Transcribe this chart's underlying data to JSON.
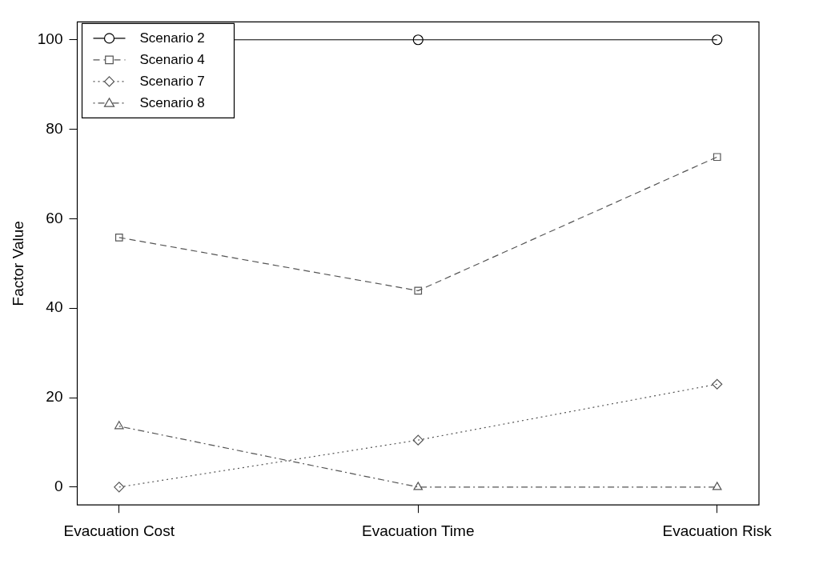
{
  "chart_data": {
    "type": "line",
    "ylabel": "Factor Value",
    "categories": [
      "Evacuation Cost",
      "Evacuation Time",
      "Evacuation Risk"
    ],
    "series": [
      {
        "name": "Scenario 2",
        "color": "#000000",
        "values": [
          100,
          100,
          100
        ],
        "marker": "circle",
        "line_style": "solid"
      },
      {
        "name": "Scenario 4",
        "color": "#555555",
        "values": [
          55.8,
          43.9,
          73.8
        ],
        "marker": "square",
        "line_style": "dashed"
      },
      {
        "name": "Scenario 7",
        "color": "#555555",
        "values": [
          0,
          10.5,
          23
        ],
        "marker": "diamond",
        "line_style": "dotted"
      },
      {
        "name": "Scenario 8",
        "color": "#555555",
        "values": [
          13.6,
          0,
          0
        ],
        "marker": "triangle",
        "line_style": "dashdot"
      }
    ],
    "ylim": [
      -4,
      104
    ],
    "yticks": [
      0,
      20,
      40,
      60,
      80,
      100
    ],
    "grid": false,
    "legend": "top left"
  }
}
